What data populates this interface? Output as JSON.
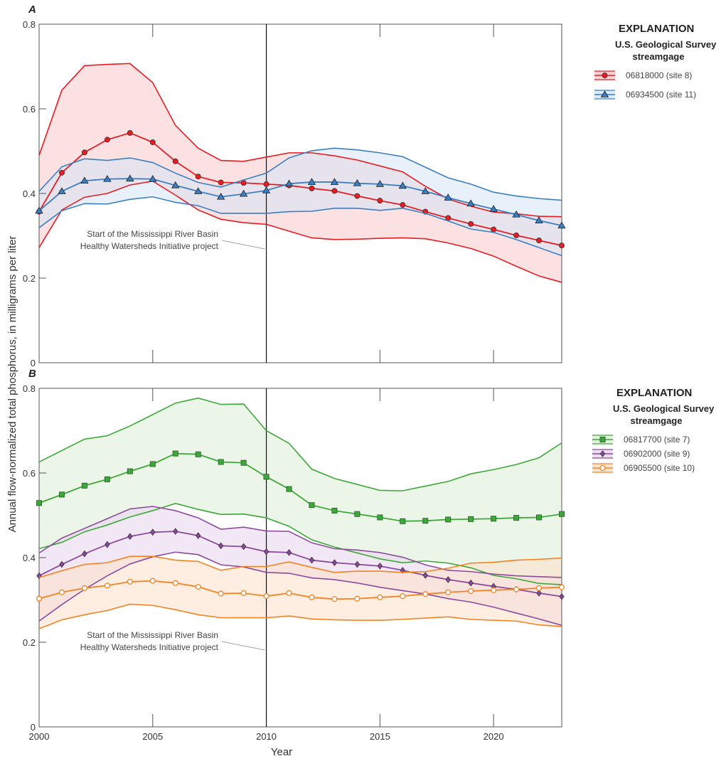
{
  "y_axis_label": "Annual flow-normalized total phosphorus, in milligrams per liter",
  "x_axis_label": "Year",
  "chart_data": [
    {
      "type": "line",
      "panel": "A",
      "xlim": [
        2000,
        2023
      ],
      "ylim": [
        0,
        0.8
      ],
      "x_ticks": [
        2000,
        2005,
        2010,
        2015,
        2020
      ],
      "y_ticks": [
        "0",
        "0.2",
        "0.4",
        "0.6",
        "0.8"
      ],
      "grid": false,
      "legend": {
        "title": "EXPLANATION",
        "subtitle_1": "U.S. Geological Survey",
        "subtitle_2": "streamgage",
        "placement": "right"
      },
      "vertical_marker": {
        "x": 2010,
        "annotation_1": "Start of the Mississippi River Basin",
        "annotation_2": "Healthy Watersheds Initiative project"
      },
      "x": [
        2000,
        2001,
        2002,
        2003,
        2004,
        2005,
        2006,
        2007,
        2008,
        2009,
        2010,
        2011,
        2012,
        2013,
        2014,
        2015,
        2016,
        2017,
        2018,
        2019,
        2020,
        2021,
        2022,
        2023
      ],
      "series": [
        {
          "name": "06818000 (site 8)",
          "color": "#e31e24",
          "fill": "#f9c9cb",
          "marker": "circle",
          "median": [
            0.357,
            0.449,
            0.497,
            0.527,
            0.543,
            0.521,
            0.476,
            0.44,
            0.426,
            0.425,
            0.422,
            0.419,
            0.412,
            0.406,
            0.394,
            0.383,
            0.373,
            0.357,
            0.342,
            0.328,
            0.315,
            0.301,
            0.289,
            0.277
          ],
          "upper": [
            0.49,
            0.644,
            0.702,
            0.705,
            0.707,
            0.662,
            0.561,
            0.507,
            0.478,
            0.476,
            0.486,
            0.496,
            0.496,
            0.489,
            0.479,
            0.465,
            0.451,
            0.417,
            0.387,
            0.37,
            0.356,
            0.352,
            0.346,
            0.345
          ],
          "lower": [
            0.272,
            0.361,
            0.391,
            0.4,
            0.42,
            0.429,
            0.396,
            0.361,
            0.339,
            0.331,
            0.327,
            0.311,
            0.295,
            0.291,
            0.292,
            0.294,
            0.295,
            0.293,
            0.283,
            0.27,
            0.252,
            0.228,
            0.205,
            0.19
          ]
        },
        {
          "name": "06934500 (site 11)",
          "color": "#3b7fc0",
          "fill": "#d5e6f4",
          "marker": "triangle",
          "median": [
            0.359,
            0.405,
            0.43,
            0.434,
            0.435,
            0.434,
            0.419,
            0.405,
            0.392,
            0.399,
            0.407,
            0.423,
            0.427,
            0.427,
            0.424,
            0.422,
            0.418,
            0.405,
            0.39,
            0.376,
            0.363,
            0.35,
            0.336,
            0.324
          ],
          "upper": [
            0.405,
            0.463,
            0.482,
            0.478,
            0.484,
            0.473,
            0.448,
            0.426,
            0.415,
            0.432,
            0.448,
            0.484,
            0.501,
            0.507,
            0.503,
            0.496,
            0.487,
            0.462,
            0.437,
            0.422,
            0.403,
            0.394,
            0.388,
            0.384
          ],
          "lower": [
            0.319,
            0.359,
            0.376,
            0.375,
            0.386,
            0.392,
            0.379,
            0.371,
            0.353,
            0.353,
            0.353,
            0.357,
            0.358,
            0.365,
            0.365,
            0.36,
            0.365,
            0.353,
            0.335,
            0.316,
            0.308,
            0.291,
            0.272,
            0.253
          ]
        }
      ]
    },
    {
      "type": "line",
      "panel": "B",
      "xlim": [
        2000,
        2023
      ],
      "ylim": [
        0,
        0.8
      ],
      "x_ticks": [
        2000,
        2005,
        2010,
        2015,
        2020
      ],
      "y_ticks": [
        "0",
        "0.2",
        "0.4",
        "0.6",
        "0.8"
      ],
      "grid": false,
      "legend": {
        "title": "EXPLANATION",
        "subtitle_1": "U.S. Geological Survey",
        "subtitle_2": "streamgage",
        "placement": "right"
      },
      "vertical_marker": {
        "x": 2010,
        "annotation_1": "Start of the Mississippi River Basin",
        "annotation_2": "Healthy Watersheds Initiative project"
      },
      "x": [
        2000,
        2001,
        2002,
        2003,
        2004,
        2005,
        2006,
        2007,
        2008,
        2009,
        2010,
        2011,
        2012,
        2013,
        2014,
        2015,
        2016,
        2017,
        2018,
        2019,
        2020,
        2021,
        2022,
        2023
      ],
      "series": [
        {
          "name": "06817700 (site 7)",
          "color": "#3da83a",
          "fill": "#dcefd6",
          "marker": "square",
          "median": [
            0.529,
            0.549,
            0.57,
            0.585,
            0.604,
            0.621,
            0.646,
            0.644,
            0.626,
            0.624,
            0.591,
            0.562,
            0.524,
            0.511,
            0.503,
            0.495,
            0.486,
            0.487,
            0.49,
            0.491,
            0.492,
            0.494,
            0.495,
            0.503
          ],
          "upper": [
            0.626,
            0.653,
            0.68,
            0.688,
            0.711,
            0.738,
            0.765,
            0.777,
            0.762,
            0.763,
            0.7,
            0.67,
            0.609,
            0.587,
            0.573,
            0.559,
            0.558,
            0.569,
            0.58,
            0.598,
            0.608,
            0.62,
            0.636,
            0.671
          ],
          "lower": [
            0.421,
            0.436,
            0.461,
            0.477,
            0.496,
            0.511,
            0.528,
            0.514,
            0.502,
            0.503,
            0.494,
            0.474,
            0.442,
            0.425,
            0.411,
            0.397,
            0.388,
            0.392,
            0.387,
            0.376,
            0.358,
            0.35,
            0.339,
            0.336
          ]
        },
        {
          "name": "06902000 (site 9)",
          "color": "#8c4a9c",
          "fill": "#e8d6ec",
          "marker": "diamond",
          "median": [
            0.357,
            0.384,
            0.409,
            0.431,
            0.45,
            0.46,
            0.462,
            0.452,
            0.428,
            0.426,
            0.414,
            0.412,
            0.394,
            0.388,
            0.384,
            0.38,
            0.37,
            0.358,
            0.348,
            0.34,
            0.332,
            0.325,
            0.316,
            0.308
          ],
          "upper": [
            0.411,
            0.446,
            0.469,
            0.492,
            0.515,
            0.521,
            0.511,
            0.494,
            0.467,
            0.472,
            0.463,
            0.462,
            0.435,
            0.421,
            0.418,
            0.412,
            0.401,
            0.383,
            0.37,
            0.367,
            0.361,
            0.357,
            0.355,
            0.353
          ],
          "lower": [
            0.25,
            0.289,
            0.325,
            0.357,
            0.385,
            0.402,
            0.413,
            0.407,
            0.383,
            0.378,
            0.365,
            0.363,
            0.352,
            0.348,
            0.34,
            0.33,
            0.322,
            0.314,
            0.303,
            0.295,
            0.283,
            0.269,
            0.255,
            0.24
          ]
        },
        {
          "name": "06905500 (site 10)",
          "color": "#f58220",
          "fill": "#fde0c8",
          "marker": "open-circle",
          "median": [
            0.303,
            0.318,
            0.328,
            0.334,
            0.343,
            0.345,
            0.34,
            0.331,
            0.315,
            0.316,
            0.309,
            0.316,
            0.306,
            0.302,
            0.303,
            0.306,
            0.309,
            0.314,
            0.318,
            0.321,
            0.323,
            0.325,
            0.328,
            0.33
          ],
          "upper": [
            0.353,
            0.369,
            0.384,
            0.388,
            0.403,
            0.403,
            0.394,
            0.391,
            0.37,
            0.379,
            0.379,
            0.39,
            0.377,
            0.365,
            0.368,
            0.368,
            0.365,
            0.367,
            0.375,
            0.387,
            0.389,
            0.394,
            0.396,
            0.399
          ],
          "lower": [
            0.232,
            0.253,
            0.265,
            0.275,
            0.29,
            0.287,
            0.277,
            0.265,
            0.258,
            0.258,
            0.258,
            0.262,
            0.255,
            0.253,
            0.252,
            0.252,
            0.254,
            0.257,
            0.26,
            0.254,
            0.252,
            0.25,
            0.241,
            0.237
          ]
        }
      ]
    }
  ]
}
